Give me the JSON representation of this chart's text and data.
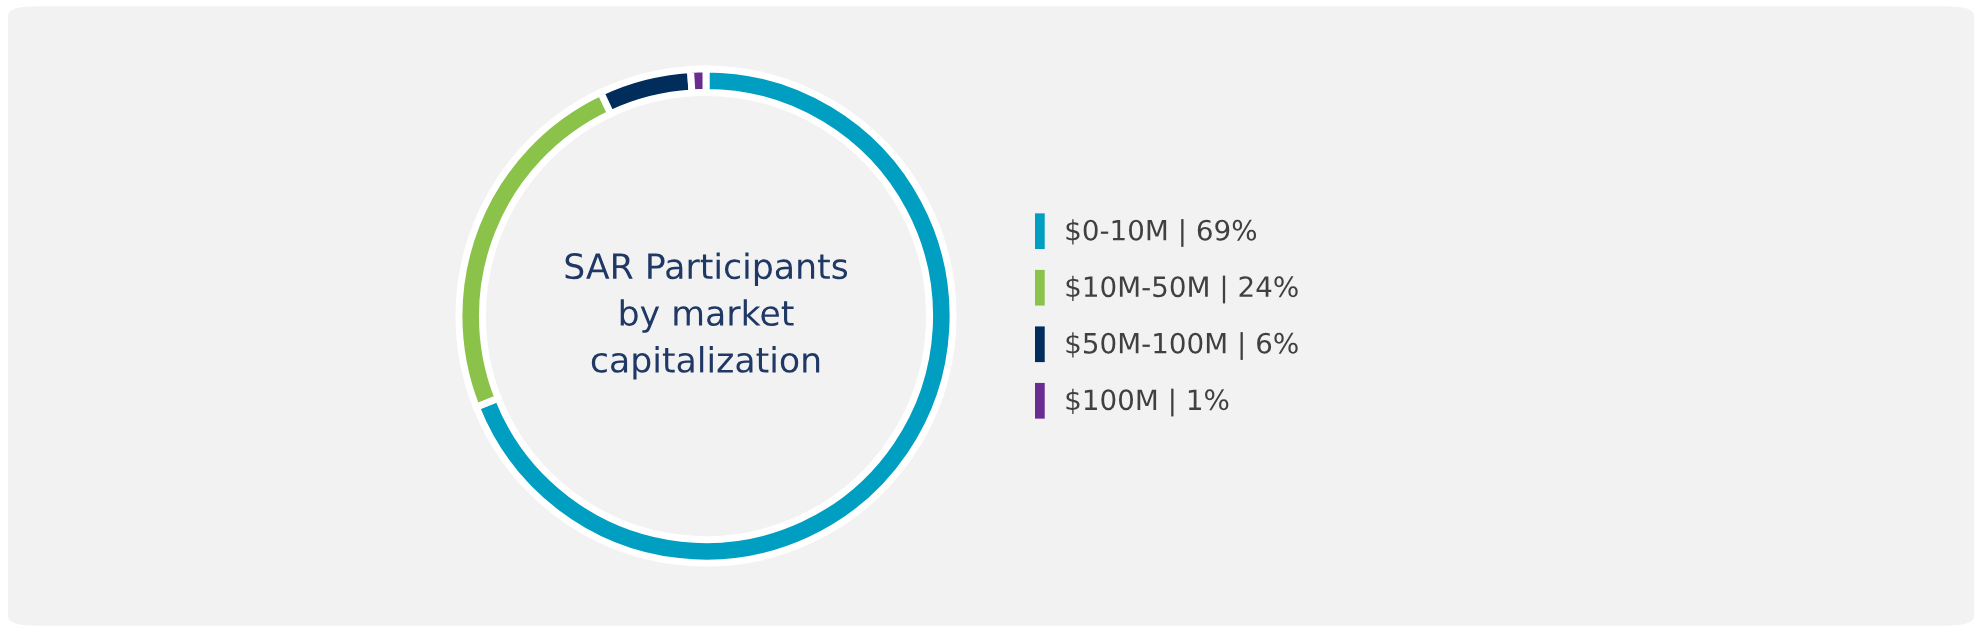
{
  "chart_data": {
    "type": "donut",
    "title": "SAR Participants\nby market\ncapitalization",
    "categories": [
      "$0-10M | 69%",
      "$10M-50M | 24%",
      "$50M-100M | 6%",
      "$100M | 1%"
    ],
    "values": [
      69,
      24,
      6,
      1
    ],
    "colors": [
      "#009fc2",
      "#8bc34a",
      "#002d5c",
      "#6a2c91"
    ],
    "legend": "right"
  }
}
